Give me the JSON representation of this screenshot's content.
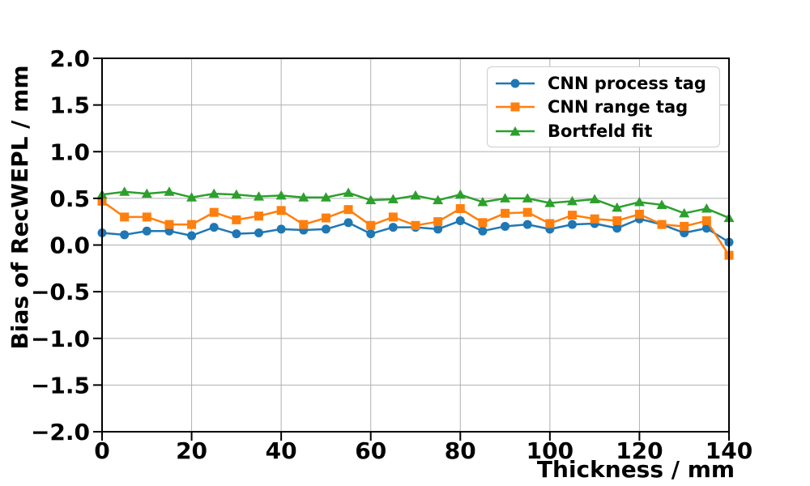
{
  "figure": {
    "background": "#ffffff",
    "grid_color": "#b0b0b0",
    "axis_color": "#000000"
  },
  "chart_data": {
    "type": "line",
    "title": "",
    "xlabel": "Thickness / mm",
    "ylabel": "Bias of RecWEPL / mm",
    "xlim": [
      0,
      140
    ],
    "ylim": [
      -2.0,
      2.0
    ],
    "grid": true,
    "legend_position": "upper right",
    "xticks": [
      0,
      20,
      40,
      60,
      80,
      100,
      120,
      140
    ],
    "xtick_labels": [
      "0",
      "20",
      "40",
      "60",
      "80",
      "100",
      "120",
      "140"
    ],
    "yticks": [
      2.0,
      1.5,
      1.0,
      0.5,
      0.0,
      -0.5,
      -1.0,
      -1.5,
      -2.0
    ],
    "ytick_labels": [
      "2.0",
      "1.5",
      "1.0",
      "0.5",
      "0.0",
      "−0.5",
      "−1.0",
      "−1.5",
      "−2.0"
    ],
    "x": [
      0,
      5,
      10,
      15,
      20,
      25,
      30,
      35,
      40,
      45,
      50,
      55,
      60,
      65,
      70,
      75,
      80,
      85,
      90,
      95,
      100,
      105,
      110,
      115,
      120,
      125,
      130,
      135,
      140
    ],
    "series": [
      {
        "name": "CNN process tag",
        "color": "#1f77b4",
        "marker": "circle",
        "values": [
          0.13,
          0.11,
          0.15,
          0.15,
          0.1,
          0.19,
          0.12,
          0.13,
          0.17,
          0.16,
          0.17,
          0.24,
          0.12,
          0.19,
          0.19,
          0.17,
          0.26,
          0.15,
          0.2,
          0.22,
          0.17,
          0.22,
          0.23,
          0.18,
          0.28,
          0.22,
          0.13,
          0.18,
          0.03
        ]
      },
      {
        "name": "CNN range tag",
        "color": "#ff7f0e",
        "marker": "square",
        "values": [
          0.47,
          0.3,
          0.3,
          0.22,
          0.22,
          0.35,
          0.27,
          0.31,
          0.37,
          0.22,
          0.29,
          0.38,
          0.21,
          0.3,
          0.21,
          0.25,
          0.39,
          0.24,
          0.34,
          0.35,
          0.23,
          0.32,
          0.28,
          0.26,
          0.33,
          0.22,
          0.2,
          0.26,
          -0.11
        ]
      },
      {
        "name": "Bortfeld fit",
        "color": "#2ca02c",
        "marker": "triangle_up",
        "values": [
          0.54,
          0.57,
          0.55,
          0.57,
          0.51,
          0.55,
          0.54,
          0.52,
          0.53,
          0.51,
          0.51,
          0.56,
          0.48,
          0.49,
          0.53,
          0.48,
          0.54,
          0.46,
          0.5,
          0.5,
          0.45,
          0.47,
          0.49,
          0.4,
          0.46,
          0.43,
          0.34,
          0.39,
          0.29
        ]
      }
    ]
  }
}
